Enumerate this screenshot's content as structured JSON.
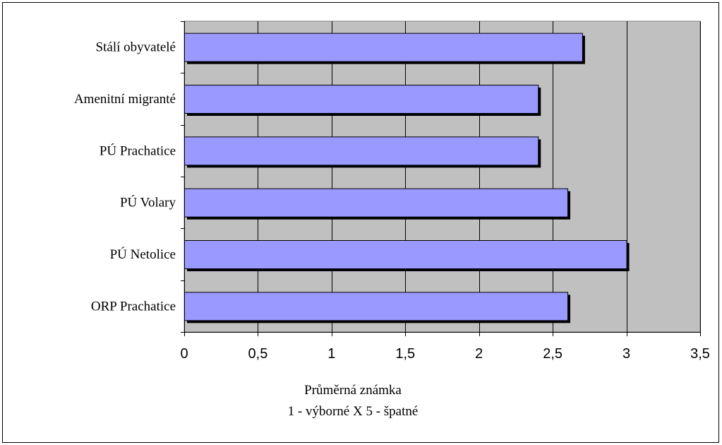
{
  "chart_data": {
    "type": "bar",
    "orientation": "horizontal",
    "categories": [
      "Stálí obyvatelé",
      "Amenitní migranté",
      "PÚ Prachatice",
      "PÚ Volary",
      "PÚ Netolice",
      "ORP Prachatice"
    ],
    "values": [
      2.7,
      2.4,
      2.4,
      2.6,
      3.0,
      2.6
    ],
    "xlim": [
      0,
      3.5
    ],
    "xticks": [
      "0",
      "0,5",
      "1",
      "1,5",
      "2",
      "2,5",
      "3",
      "3,5"
    ],
    "xlabel_lines": [
      "Průměrná známka",
      "1 - výborné X 5 - špatné"
    ],
    "grid": "vertical",
    "legend": "none",
    "colors": {
      "bar": "#9999ff",
      "bar_shadow": "#000000",
      "plot_background": "#c0c0c0",
      "gridline": "#000000"
    }
  }
}
